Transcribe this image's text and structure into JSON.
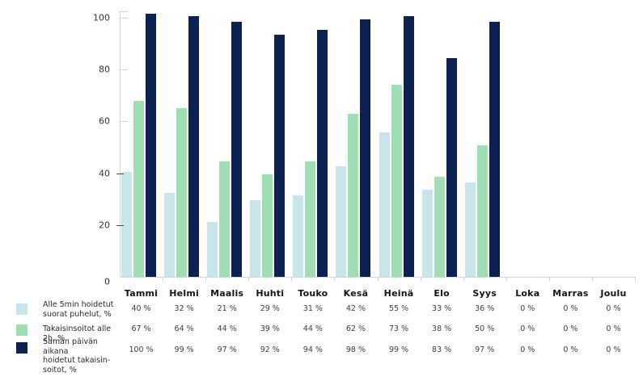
{
  "colors": {
    "series_direct_calls": "#c7e5ea",
    "series_callbacks_2h": "#a0dfb4",
    "series_same_day_callbacks": "#0d2150",
    "axis_line": "#d6d6d6",
    "tick_dark": "#4a4a4a",
    "tick_light": "#d8d8d8"
  },
  "chart_data": {
    "type": "bar",
    "categories": [
      "Tammi",
      "Helmi",
      "Maalis",
      "Huhti",
      "Touko",
      "Kesä",
      "Heinä",
      "Elo",
      "Syys",
      "Loka",
      "Marras",
      "Joulu"
    ],
    "series": [
      {
        "name": "Alle 5min hoidetut suorat puhelut, %",
        "color": "#c7e5ea",
        "values": [
          40,
          32,
          21,
          29,
          31,
          42,
          55,
          33,
          36,
          0,
          0,
          0
        ]
      },
      {
        "name": "Takaisinsoitot alle 2h, %",
        "color": "#a0dfb4",
        "values": [
          67,
          64,
          44,
          39,
          44,
          62,
          73,
          38,
          50,
          0,
          0,
          0
        ]
      },
      {
        "name": "Saman päivän aikana hoidetut takaisinsoitot, %",
        "color": "#0d2150",
        "values": [
          100,
          99,
          97,
          92,
          94,
          98,
          99,
          83,
          97,
          0,
          0,
          0
        ]
      }
    ],
    "title": "",
    "xlabel": "",
    "ylabel": "",
    "ylim": [
      0,
      100
    ],
    "yticks": [
      0,
      20,
      40,
      60,
      80,
      100
    ],
    "grid": false,
    "legend_position": "bottom-left",
    "value_suffix": " %"
  },
  "legend": {
    "items": [
      {
        "label": "Alle 5min hoidetut\nsuorat puhelut, %",
        "color": "#c7e5ea"
      },
      {
        "label": "Takaisinsoitot alle 2h, %",
        "color": "#a0dfb4"
      },
      {
        "label": "Saman päivän aikana\nhoidetut takaisin-\nsoitot, %",
        "color": "#0d2150"
      }
    ]
  }
}
